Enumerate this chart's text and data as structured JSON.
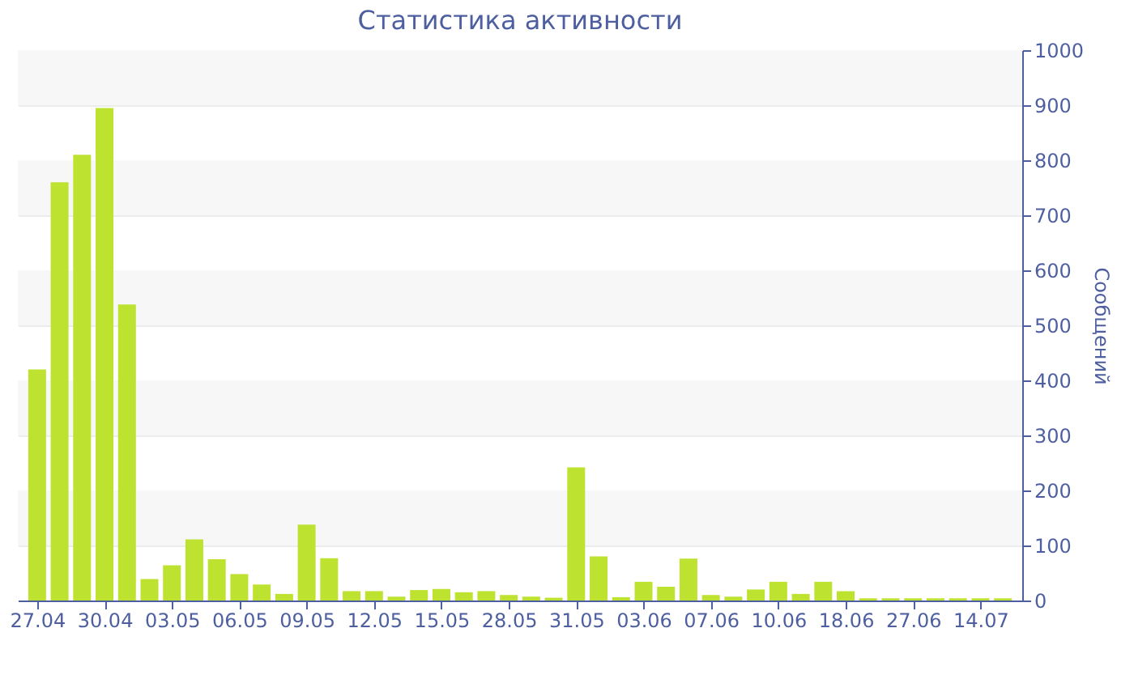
{
  "chart_data": {
    "type": "bar",
    "title": "Статистика активности",
    "ylabel": "Сообщений",
    "categories": [
      "27.04",
      null,
      null,
      "30.04",
      null,
      null,
      "03.05",
      null,
      null,
      "06.05",
      null,
      null,
      "09.05",
      null,
      null,
      "12.05",
      null,
      null,
      "15.05",
      null,
      null,
      "28.05",
      null,
      null,
      "31.05",
      null,
      null,
      "03.06",
      null,
      null,
      "07.06",
      null,
      null,
      "10.06",
      null,
      null,
      "18.06",
      null,
      null,
      "27.06",
      null,
      null,
      "14.07",
      null
    ],
    "values": [
      420,
      760,
      810,
      895,
      538,
      39,
      64,
      111,
      75,
      48,
      29,
      12,
      138,
      77,
      17,
      17,
      7,
      19,
      21,
      15,
      17,
      10,
      7,
      5,
      242,
      80,
      6,
      34,
      25,
      76,
      10,
      7,
      20,
      34,
      12,
      34,
      17,
      4,
      4,
      4,
      4,
      4,
      4,
      4
    ],
    "color": "#bde22f",
    "ylim": [
      0,
      1000
    ],
    "yticks": [
      0,
      100,
      200,
      300,
      400,
      500,
      600,
      700,
      800,
      900,
      1000
    ],
    "grid": "y"
  }
}
